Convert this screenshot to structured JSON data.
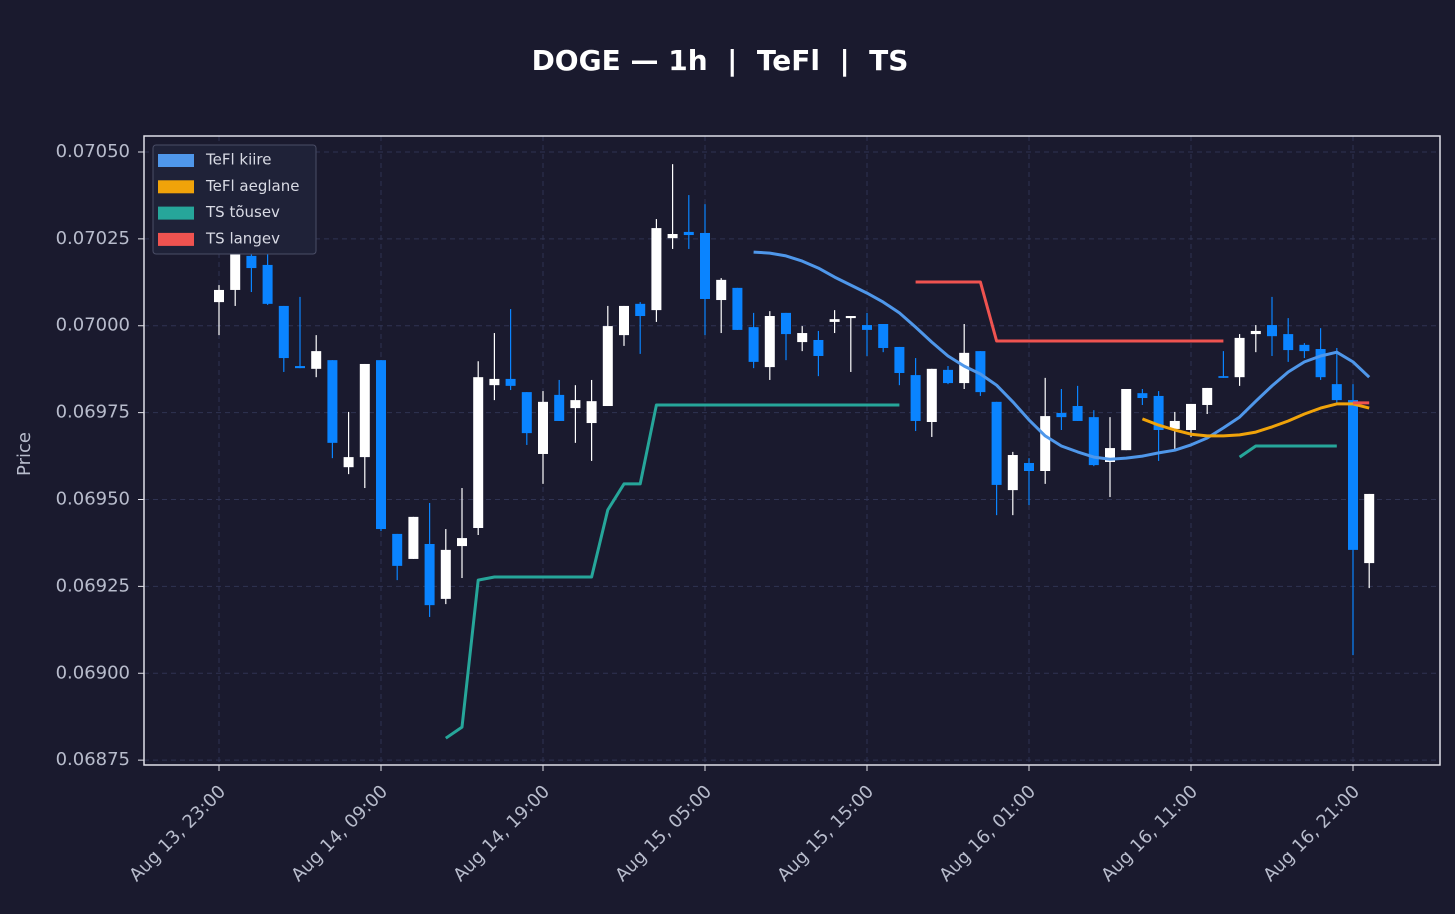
{
  "chart_data": {
    "type": "candlestick",
    "title": "DOGE — 1h  |  TeFl  |  TS",
    "ylabel": "Price",
    "x": [
      "Aug 13, 23:00",
      null,
      null,
      null,
      null,
      null,
      null,
      null,
      null,
      null,
      "Aug 14, 09:00",
      null,
      null,
      null,
      null,
      null,
      null,
      null,
      null,
      null,
      "Aug 14, 19:00",
      null,
      null,
      null,
      null,
      null,
      null,
      null,
      null,
      null,
      "Aug 15, 05:00",
      null,
      null,
      null,
      null,
      null,
      null,
      null,
      null,
      null,
      "Aug 15, 15:00",
      null,
      null,
      null,
      null,
      null,
      null,
      null,
      null,
      null,
      "Aug 16, 01:00",
      null,
      null,
      null,
      null,
      null,
      null,
      null,
      null,
      null,
      "Aug 16, 11:00",
      null,
      null,
      null,
      null,
      null,
      null,
      null,
      null,
      null,
      "Aug 16, 21:00",
      null
    ],
    "ylim": [
      0.068736,
      0.070546
    ],
    "yticks": [
      {
        "value": 0.0705,
        "label": "0.07050"
      },
      0.07025,
      {
        "value": 0.07,
        "label": "0.07000"
      },
      0.06975,
      {
        "value": 0.0695,
        "label": "0.06950"
      },
      0.06925,
      {
        "value": 0.069,
        "label": "0.06900"
      },
      0.06875
    ],
    "grid": true,
    "legend": "upper left",
    "up_color": "#ffffff",
    "down_color": "#0a84ff",
    "open": [
      0.070068,
      0.070103,
      0.070201,
      0.070175,
      0.070057,
      0.069884,
      0.069876,
      0.069901,
      0.069593,
      0.069622,
      0.069901,
      0.069401,
      0.069329,
      0.069372,
      0.069214,
      0.069366,
      0.069418,
      0.069829,
      0.069847,
      0.069809,
      0.069631,
      0.069801,
      0.069763,
      0.06972,
      0.069769,
      0.069973,
      0.070063,
      0.070045,
      0.070252,
      0.07027,
      0.070267,
      0.070074,
      0.070109,
      0.069996,
      0.069881,
      0.070037,
      0.069953,
      0.069959,
      0.070011,
      0.070022,
      0.070002,
      0.070005,
      0.069939,
      0.069858,
      0.069723,
      0.069873,
      0.069835,
      0.069927,
      0.069781,
      0.069527,
      0.069605,
      0.069582,
      0.069749,
      0.069769,
      0.069737,
      0.069608,
      0.069642,
      0.069806,
      0.069798,
      0.069703,
      0.0697,
      0.069772,
      0.069855,
      0.069852,
      0.069976,
      0.070002,
      0.069976,
      0.069945,
      0.069933,
      0.069832,
      0.069786,
      0.069317
    ],
    "high": [
      0.070117,
      0.070252,
      0.070247,
      0.070299,
      0.070057,
      0.070083,
      0.069973,
      0.069901,
      0.069752,
      0.06989,
      0.069901,
      0.069401,
      0.06945,
      0.06949,
      0.069415,
      0.069533,
      0.069898,
      0.069979,
      0.070048,
      0.069809,
      0.069812,
      0.069844,
      0.069829,
      0.069844,
      0.070057,
      0.070057,
      0.070068,
      0.070307,
      0.070465,
      0.070376,
      0.07035,
      0.070137,
      0.070109,
      0.070037,
      0.070042,
      0.070037,
      0.069999,
      0.069985,
      0.070045,
      0.070028,
      0.070037,
      0.070005,
      0.069939,
      0.069907,
      0.069876,
      0.069884,
      0.070005,
      0.069927,
      0.069781,
      0.069637,
      0.069619,
      0.06985,
      0.069818,
      0.069827,
      0.069757,
      0.069737,
      0.069818,
      0.069818,
      0.069812,
      0.069752,
      0.069775,
      0.069821,
      0.069927,
      0.069976,
      0.070002,
      0.070083,
      0.070022,
      0.06995,
      0.069993,
      0.069936,
      0.069832,
      0.069516
    ],
    "low": [
      0.069973,
      0.070057,
      0.070097,
      0.07006,
      0.069867,
      0.069878,
      0.069852,
      0.069619,
      0.069573,
      0.069533,
      0.069409,
      0.069268,
      0.069329,
      0.069162,
      0.069199,
      0.069274,
      0.069398,
      0.069786,
      0.069815,
      0.069657,
      0.069545,
      0.069726,
      0.069663,
      0.069611,
      0.069769,
      0.069942,
      0.069919,
      0.070011,
      0.070221,
      0.070221,
      0.069973,
      0.069979,
      0.069988,
      0.069878,
      0.069844,
      0.069901,
      0.069927,
      0.069855,
      0.069979,
      0.069867,
      0.069913,
      0.069924,
      0.069829,
      0.069697,
      0.06968,
      0.069832,
      0.069818,
      0.069798,
      0.069455,
      0.069455,
      0.069484,
      0.069545,
      0.0697,
      0.069726,
      0.069596,
      0.069507,
      0.069642,
      0.069772,
      0.069611,
      0.069645,
      0.06968,
      0.069746,
      0.06985,
      0.069827,
      0.069924,
      0.069913,
      0.069896,
      0.069907,
      0.069844,
      0.069775,
      0.069052,
      0.069245
    ],
    "close": [
      0.070103,
      0.070235,
      0.070166,
      0.070063,
      0.069907,
      0.069878,
      0.069927,
      0.069663,
      0.069622,
      0.06989,
      0.069415,
      0.069309,
      0.06945,
      0.069196,
      0.069355,
      0.069389,
      0.069852,
      0.069847,
      0.069827,
      0.069691,
      0.069781,
      0.069726,
      0.069786,
      0.069783,
      0.069999,
      0.070057,
      0.070028,
      0.070281,
      0.070264,
      0.070261,
      0.070077,
      0.070132,
      0.069988,
      0.069896,
      0.070028,
      0.069976,
      0.069979,
      0.069913,
      0.070019,
      0.070028,
      0.069988,
      0.069936,
      0.069864,
      0.069726,
      0.069876,
      0.069835,
      0.069922,
      0.069809,
      0.069542,
      0.069628,
      0.069582,
      0.06974,
      0.069737,
      0.069726,
      0.069599,
      0.069648,
      0.069818,
      0.069792,
      0.0697,
      0.069726,
      0.069775,
      0.069821,
      0.06985,
      0.069965,
      0.069985,
      0.06997,
      0.06993,
      0.069927,
      0.069852,
      0.069786,
      0.069355,
      0.069516
    ],
    "series": [
      {
        "name": "TeFl kiire",
        "color": "#4f97ea",
        "values": [
          null,
          null,
          null,
          null,
          null,
          null,
          null,
          null,
          null,
          null,
          null,
          null,
          null,
          null,
          null,
          null,
          null,
          null,
          null,
          null,
          null,
          null,
          null,
          null,
          null,
          null,
          null,
          null,
          null,
          null,
          null,
          null,
          null,
          0.070212,
          0.070209,
          0.070201,
          0.070186,
          0.070166,
          0.07014,
          0.070117,
          0.070094,
          0.070068,
          0.070037,
          0.069996,
          0.069953,
          0.069913,
          0.069884,
          0.069861,
          0.069829,
          0.069781,
          0.069729,
          0.069683,
          0.069654,
          0.069637,
          0.069622,
          0.069616,
          0.069619,
          0.069625,
          0.069634,
          0.069642,
          0.069657,
          0.069677,
          0.069706,
          0.069737,
          0.069783,
          0.069827,
          0.069867,
          0.069896,
          0.069913,
          0.069924,
          0.069896,
          0.069852
        ]
      },
      {
        "name": "TeFl aeglane",
        "color": "#f0a30a",
        "values": [
          null,
          null,
          null,
          null,
          null,
          null,
          null,
          null,
          null,
          null,
          null,
          null,
          null,
          null,
          null,
          null,
          null,
          null,
          null,
          null,
          null,
          null,
          null,
          null,
          null,
          null,
          null,
          null,
          null,
          null,
          null,
          null,
          null,
          null,
          null,
          null,
          null,
          null,
          null,
          null,
          null,
          null,
          null,
          null,
          null,
          null,
          null,
          null,
          null,
          null,
          null,
          null,
          null,
          null,
          null,
          null,
          null,
          0.069732,
          0.069714,
          0.0697,
          0.069688,
          0.069683,
          0.069683,
          0.069686,
          0.069694,
          0.069709,
          0.069726,
          0.069746,
          0.069763,
          0.069775,
          0.069775,
          0.069763
        ]
      },
      {
        "name": "TS tõusev",
        "color": "#26a69a",
        "values": [
          null,
          null,
          null,
          null,
          null,
          null,
          null,
          null,
          null,
          null,
          null,
          null,
          null,
          null,
          0.068813,
          0.068845,
          0.069268,
          0.069277,
          0.069277,
          0.069277,
          0.069277,
          0.069277,
          0.069277,
          0.069277,
          0.06947,
          0.069545,
          0.069545,
          0.069772,
          0.069772,
          0.069772,
          0.069772,
          0.069772,
          0.069772,
          0.069772,
          0.069772,
          0.069772,
          0.069772,
          0.069772,
          0.069772,
          0.069772,
          0.069772,
          0.069772,
          0.069772,
          null,
          null,
          null,
          null,
          null,
          null,
          null,
          null,
          null,
          null,
          null,
          null,
          null,
          null,
          null,
          null,
          null,
          null,
          null,
          null,
          0.069622,
          0.069654,
          0.069654,
          0.069654,
          0.069654,
          0.069654,
          0.069654,
          null,
          null
        ]
      },
      {
        "name": "TS langev",
        "color": "#ef5350",
        "values": [
          null,
          null,
          null,
          null,
          null,
          null,
          null,
          null,
          null,
          null,
          null,
          null,
          null,
          null,
          null,
          null,
          null,
          null,
          null,
          null,
          null,
          null,
          null,
          null,
          null,
          null,
          null,
          null,
          null,
          null,
          null,
          null,
          null,
          null,
          null,
          null,
          null,
          null,
          null,
          null,
          null,
          null,
          null,
          0.070126,
          0.070126,
          0.070126,
          0.070126,
          0.070126,
          0.069956,
          0.069956,
          0.069956,
          0.069956,
          0.069956,
          0.069956,
          0.069956,
          0.069956,
          0.069956,
          0.069956,
          0.069956,
          0.069956,
          0.069956,
          0.069956,
          0.069956,
          null,
          null,
          null,
          null,
          null,
          null,
          null,
          0.069778,
          0.069778
        ]
      }
    ]
  }
}
